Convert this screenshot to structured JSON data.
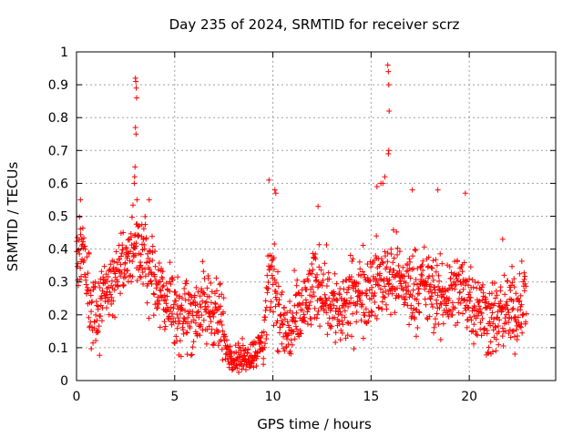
{
  "chart_data": {
    "type": "scatter",
    "title": "Day 235 of 2024, SRMTID for receiver scrz",
    "xlabel": "GPS time / hours",
    "ylabel": "SRMTID / TECUs",
    "xlim": [
      0,
      24.4
    ],
    "ylim": [
      0,
      1
    ],
    "x_ticks": [
      0,
      5,
      10,
      15,
      20
    ],
    "y_ticks": [
      0,
      0.1,
      0.2,
      0.3,
      0.4,
      0.5,
      0.6,
      0.7,
      0.8,
      0.9,
      1
    ],
    "x_tick_labels": [
      "0",
      "5",
      "10",
      "15",
      "20"
    ],
    "y_tick_labels": [
      "0",
      "0.1",
      "0.2",
      "0.3",
      "0.4",
      "0.5",
      "0.6",
      "0.7",
      "0.8",
      "0.9",
      "1"
    ],
    "grid": true,
    "marker": "+",
    "series": [
      {
        "name": "SRMTID",
        "color": "#ff0000",
        "trend": [
          [
            0.0,
            0.32
          ],
          [
            0.3,
            0.42
          ],
          [
            0.6,
            0.25
          ],
          [
            1.0,
            0.2
          ],
          [
            1.5,
            0.28
          ],
          [
            2.0,
            0.33
          ],
          [
            2.5,
            0.36
          ],
          [
            3.0,
            0.4
          ],
          [
            3.5,
            0.37
          ],
          [
            4.0,
            0.3
          ],
          [
            4.5,
            0.26
          ],
          [
            5.0,
            0.22
          ],
          [
            5.5,
            0.2
          ],
          [
            6.0,
            0.21
          ],
          [
            6.5,
            0.22
          ],
          [
            7.0,
            0.22
          ],
          [
            7.3,
            0.18
          ],
          [
            7.6,
            0.1
          ],
          [
            8.0,
            0.07
          ],
          [
            8.5,
            0.07
          ],
          [
            9.0,
            0.08
          ],
          [
            9.5,
            0.12
          ],
          [
            9.8,
            0.28
          ],
          [
            10.0,
            0.35
          ],
          [
            10.3,
            0.2
          ],
          [
            10.7,
            0.14
          ],
          [
            11.0,
            0.16
          ],
          [
            11.5,
            0.21
          ],
          [
            12.0,
            0.27
          ],
          [
            12.5,
            0.3
          ],
          [
            13.0,
            0.23
          ],
          [
            13.5,
            0.2
          ],
          [
            14.0,
            0.25
          ],
          [
            14.5,
            0.27
          ],
          [
            15.0,
            0.29
          ],
          [
            15.5,
            0.3
          ],
          [
            16.0,
            0.33
          ],
          [
            16.5,
            0.3
          ],
          [
            17.0,
            0.28
          ],
          [
            17.5,
            0.29
          ],
          [
            18.0,
            0.28
          ],
          [
            18.5,
            0.24
          ],
          [
            19.0,
            0.27
          ],
          [
            19.5,
            0.28
          ],
          [
            20.0,
            0.26
          ],
          [
            20.5,
            0.22
          ],
          [
            21.0,
            0.19
          ],
          [
            21.5,
            0.19
          ],
          [
            22.0,
            0.21
          ],
          [
            22.5,
            0.22
          ],
          [
            22.9,
            0.27
          ]
        ],
        "spikes": [
          [
            3.0,
            0.92
          ],
          [
            3.02,
            0.91
          ],
          [
            3.04,
            0.89
          ],
          [
            3.06,
            0.86
          ],
          [
            3.0,
            0.77
          ],
          [
            3.03,
            0.75
          ],
          [
            2.98,
            0.65
          ],
          [
            2.96,
            0.62
          ],
          [
            2.94,
            0.6
          ],
          [
            3.08,
            0.55
          ],
          [
            15.85,
            0.96
          ],
          [
            15.88,
            0.94
          ],
          [
            15.9,
            0.9
          ],
          [
            15.92,
            0.82
          ],
          [
            15.9,
            0.7
          ],
          [
            15.88,
            0.69
          ],
          [
            15.7,
            0.62
          ],
          [
            15.6,
            0.6
          ],
          [
            15.5,
            0.6
          ],
          [
            15.3,
            0.59
          ],
          [
            9.8,
            0.61
          ],
          [
            10.1,
            0.58
          ],
          [
            10.15,
            0.57
          ],
          [
            0.2,
            0.55
          ],
          [
            3.7,
            0.55
          ],
          [
            17.1,
            0.58
          ],
          [
            18.4,
            0.58
          ],
          [
            19.8,
            0.57
          ],
          [
            12.3,
            0.53
          ],
          [
            21.7,
            0.43
          ]
        ],
        "x_end": 22.9
      }
    ]
  }
}
